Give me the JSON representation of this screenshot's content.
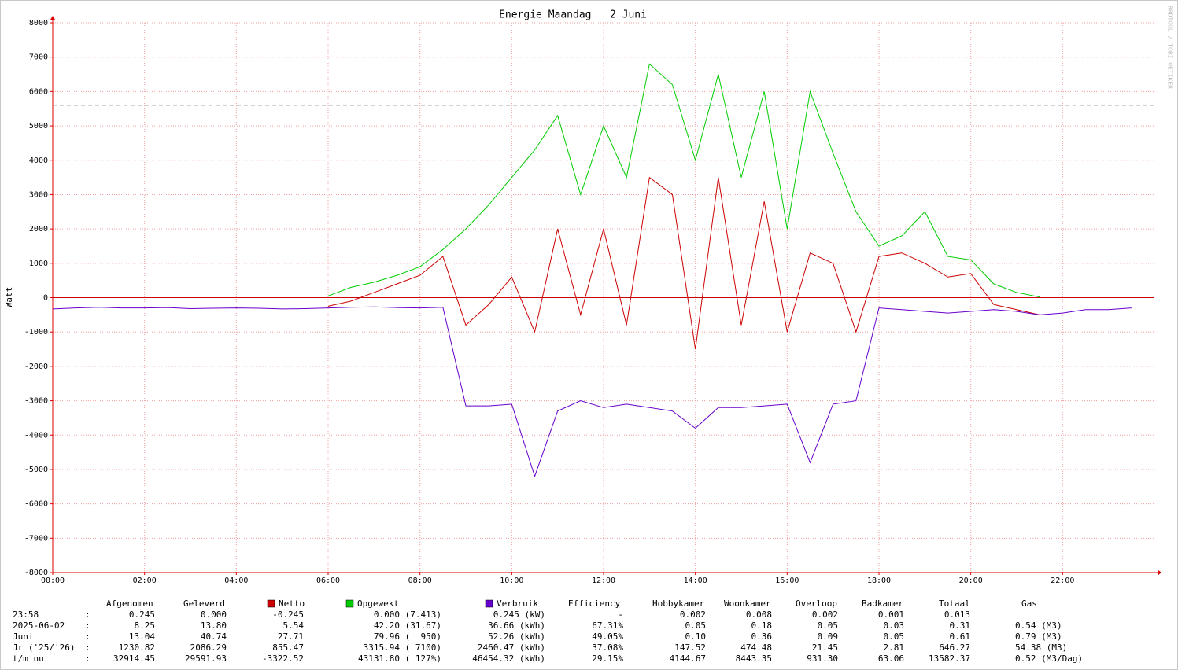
{
  "chart_data": {
    "type": "line",
    "title": "Energie Maandag   2 Juni",
    "y_label": "Watt",
    "watermark": "RRDTOOL / TOBI OETIKER",
    "x": [
      0,
      0.5,
      1,
      1.5,
      2,
      2.5,
      3,
      3.5,
      4,
      4.5,
      5,
      5.5,
      6,
      6.5,
      7,
      7.5,
      8,
      8.5,
      9,
      9.5,
      10,
      10.5,
      11,
      11.5,
      12,
      12.5,
      13,
      13.5,
      14,
      14.5,
      15,
      15.5,
      16,
      16.5,
      17,
      17.5,
      18,
      18.5,
      19,
      19.5,
      20,
      20.5,
      21,
      21.5,
      22,
      22.5,
      23,
      23.5
    ],
    "series": [
      {
        "name": "Netto",
        "color": "#cc0000",
        "values": [
          null,
          null,
          null,
          null,
          null,
          null,
          null,
          null,
          null,
          null,
          null,
          null,
          -250,
          -100,
          150,
          400,
          650,
          1200,
          -800,
          -200,
          600,
          -1000,
          2000,
          -500,
          2000,
          -800,
          3500,
          3000,
          -1500,
          3500,
          -800,
          2800,
          -1000,
          1300,
          1000,
          -1000,
          1200,
          1300,
          1000,
          600,
          700,
          -200,
          -350,
          -500,
          null,
          null,
          null,
          null
        ]
      },
      {
        "name": "Opgewekt",
        "color": "#00cc00",
        "values": [
          null,
          null,
          null,
          null,
          null,
          null,
          null,
          null,
          null,
          null,
          null,
          null,
          50,
          300,
          450,
          650,
          900,
          1400,
          2000,
          2700,
          3500,
          4300,
          5300,
          3000,
          5000,
          3500,
          6800,
          6200,
          4000,
          6500,
          3500,
          6000,
          2000,
          6000,
          4200,
          2500,
          1500,
          1800,
          2500,
          1200,
          1100,
          400,
          150,
          20,
          null,
          null,
          null,
          null
        ]
      },
      {
        "name": "Verbruik",
        "color": "#6600cc",
        "values": [
          -330,
          -300,
          -280,
          -300,
          -300,
          -290,
          -320,
          -310,
          -300,
          -310,
          -330,
          -320,
          -300,
          -280,
          -270,
          -290,
          -300,
          -280,
          -3150,
          -3150,
          -3100,
          -5200,
          -3300,
          -3000,
          -3200,
          -3100,
          -3200,
          -3300,
          -3800,
          -3200,
          -3200,
          -3150,
          -3100,
          -4800,
          -3100,
          -3000,
          -300,
          -350,
          -400,
          -450,
          -400,
          -350,
          -400,
          -500,
          -450,
          -350,
          -350,
          -300
        ]
      }
    ],
    "xlim": [
      0,
      24
    ],
    "xticks": [
      {
        "value": 0,
        "label": "00:00"
      },
      {
        "value": 2,
        "label": "02:00"
      },
      {
        "value": 4,
        "label": "04:00"
      },
      {
        "value": 6,
        "label": "06:00"
      },
      {
        "value": 8,
        "label": "08:00"
      },
      {
        "value": 10,
        "label": "10:00"
      },
      {
        "value": 12,
        "label": "12:00"
      },
      {
        "value": 14,
        "label": "14:00"
      },
      {
        "value": 16,
        "label": "16:00"
      },
      {
        "value": 18,
        "label": "18:00"
      },
      {
        "value": 20,
        "label": "20:00"
      },
      {
        "value": 22,
        "label": "22:00"
      }
    ],
    "ylim": [
      -8000,
      8000
    ],
    "yticks": [
      -8000,
      -7000,
      -6000,
      -5000,
      -4000,
      -3000,
      -2000,
      -1000,
      0,
      1000,
      2000,
      3000,
      4000,
      5000,
      6000,
      7000,
      8000
    ],
    "ref_line": 5600,
    "grid": true
  },
  "table": {
    "columns": [
      "Afgenomen",
      "Geleverd",
      "Netto",
      "Opgewekt",
      "Verbruik",
      "Efficiency",
      "Hobbykamer",
      "Woonkamer",
      "Overloop",
      "Badkamer",
      "Totaal",
      "Gas"
    ],
    "rows": [
      {
        "label": "23:58",
        "cells": [
          "0.245",
          "0.000",
          "-0.245",
          "0.000 (7.413)",
          "0.245 (kW)",
          "-",
          "0.002",
          "0.008",
          "0.002",
          "0.001",
          "0.013"
        ]
      },
      {
        "label": "2025-06-02",
        "cells": [
          "8.25",
          "13.80",
          "5.54",
          "42.20 (31.67)",
          "36.66 (kWh)",
          "67.31%",
          "0.05",
          "0.18",
          "0.05",
          "0.03",
          "0.31",
          "0.54 (M3)"
        ]
      },
      {
        "label": "Juni",
        "cells": [
          "13.04",
          "40.74",
          "27.71",
          "79.96 (  950)",
          "52.26 (kWh)",
          "49.05%",
          "0.10",
          "0.36",
          "0.09",
          "0.05",
          "0.61",
          "0.79 (M3)"
        ]
      },
      {
        "label": "Jr ('25/'26)",
        "cells": [
          "1230.82",
          "2086.29",
          "855.47",
          "3315.94 ( 7100)",
          "2460.47 (kWh)",
          "37.08%",
          "147.52",
          "474.48",
          "21.45",
          "2.81",
          "646.27",
          "54.38 (M3)"
        ]
      },
      {
        "label": "t/m nu",
        "cells": [
          "32914.45",
          "29591.93",
          "-3322.52",
          "43131.80 ( 127%)",
          "46454.32 (kWh)",
          "29.15%",
          "4144.67",
          "8443.35",
          "931.30",
          "63.06",
          "13582.37",
          "0.52 (M3/Dag)"
        ]
      }
    ]
  }
}
